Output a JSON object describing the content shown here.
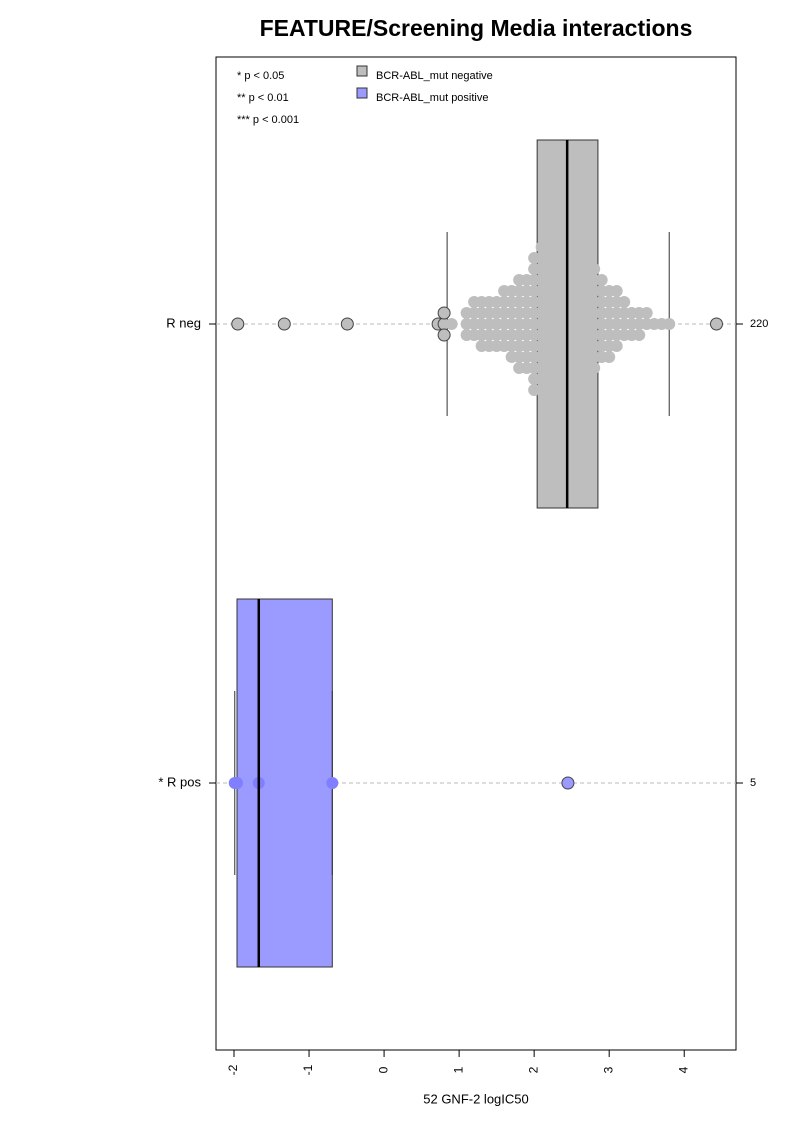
{
  "chart_data": {
    "type": "box",
    "title": "FEATURE/Screening Media interactions",
    "x_label": "52 GNF-2 logIC50",
    "xlim": [
      -2.24,
      4.69
    ],
    "xticks": [
      -2,
      -1,
      0,
      1,
      2,
      3,
      4
    ],
    "grid": true,
    "significance_legend": [
      "* p < 0.05",
      "** p < 0.01",
      "*** p < 0.001"
    ],
    "groups": [
      {
        "name": "BCR-ABL_mut negative",
        "label": "R neg",
        "count": 220,
        "color": "#bebebe",
        "point_color": "#bebebe",
        "whisker_low": 0.84,
        "q1": 2.04,
        "median": 2.44,
        "q3": 2.85,
        "whisker_high": 3.8,
        "points": [
          -1.95,
          -1.33,
          -0.49,
          0.72,
          4.43,
          0.8,
          0.8,
          0.8,
          0.9,
          1.1,
          1.1,
          1.1,
          1.2,
          1.2,
          1.2,
          1.2,
          1.3,
          1.3,
          1.3,
          1.3,
          1.3,
          1.4,
          1.4,
          1.4,
          1.4,
          1.4,
          1.5,
          1.5,
          1.5,
          1.5,
          1.5,
          1.6,
          1.6,
          1.6,
          1.6,
          1.6,
          1.6,
          1.7,
          1.7,
          1.7,
          1.7,
          1.7,
          1.7,
          1.7,
          1.8,
          1.8,
          1.8,
          1.8,
          1.8,
          1.8,
          1.8,
          1.8,
          1.8,
          1.9,
          1.9,
          1.9,
          1.9,
          1.9,
          1.9,
          1.9,
          1.9,
          1.9,
          2.0,
          2.0,
          2.0,
          2.0,
          2.0,
          2.0,
          2.0,
          2.0,
          2.0,
          2.0,
          2.0,
          2.0,
          2.0,
          2.1,
          2.1,
          2.1,
          2.1,
          2.1,
          2.1,
          2.1,
          2.1,
          2.1,
          2.1,
          2.1,
          2.1,
          2.1,
          2.1,
          2.2,
          2.2,
          2.2,
          2.2,
          2.2,
          2.2,
          2.2,
          2.2,
          2.2,
          2.2,
          2.2,
          2.2,
          2.2,
          2.2,
          2.2,
          2.3,
          2.3,
          2.3,
          2.3,
          2.3,
          2.3,
          2.3,
          2.3,
          2.3,
          2.3,
          2.3,
          2.3,
          2.3,
          2.3,
          2.3,
          2.4,
          2.4,
          2.4,
          2.4,
          2.4,
          2.4,
          2.4,
          2.4,
          2.4,
          2.4,
          2.4,
          2.4,
          2.4,
          2.4,
          2.4,
          2.5,
          2.5,
          2.5,
          2.5,
          2.5,
          2.5,
          2.5,
          2.5,
          2.5,
          2.5,
          2.5,
          2.5,
          2.5,
          2.5,
          2.5,
          2.6,
          2.6,
          2.6,
          2.6,
          2.6,
          2.6,
          2.6,
          2.6,
          2.6,
          2.6,
          2.6,
          2.6,
          2.6,
          2.7,
          2.7,
          2.7,
          2.7,
          2.7,
          2.7,
          2.7,
          2.7,
          2.7,
          2.7,
          2.7,
          2.7,
          2.8,
          2.8,
          2.8,
          2.8,
          2.8,
          2.8,
          2.8,
          2.8,
          2.8,
          2.8,
          2.9,
          2.9,
          2.9,
          2.9,
          2.9,
          2.9,
          2.9,
          2.9,
          3.0,
          3.0,
          3.0,
          3.0,
          3.0,
          3.0,
          3.0,
          3.1,
          3.1,
          3.1,
          3.1,
          3.1,
          3.1,
          3.2,
          3.2,
          3.2,
          3.2,
          3.3,
          3.3,
          3.3,
          3.4,
          3.4,
          3.4,
          3.5,
          3.5,
          3.6,
          3.7,
          3.8
        ]
      },
      {
        "name": "BCR-ABL_mut positive",
        "label": "* R pos",
        "count": 5,
        "color": "#9b9bff",
        "point_color": "#7f7fff",
        "whisker_low": -1.99,
        "q1": -1.96,
        "median": -1.67,
        "q3": -0.69,
        "whisker_high": -0.69,
        "points": [
          -1.99,
          -1.96,
          -1.67,
          -0.69,
          2.45
        ]
      }
    ]
  }
}
